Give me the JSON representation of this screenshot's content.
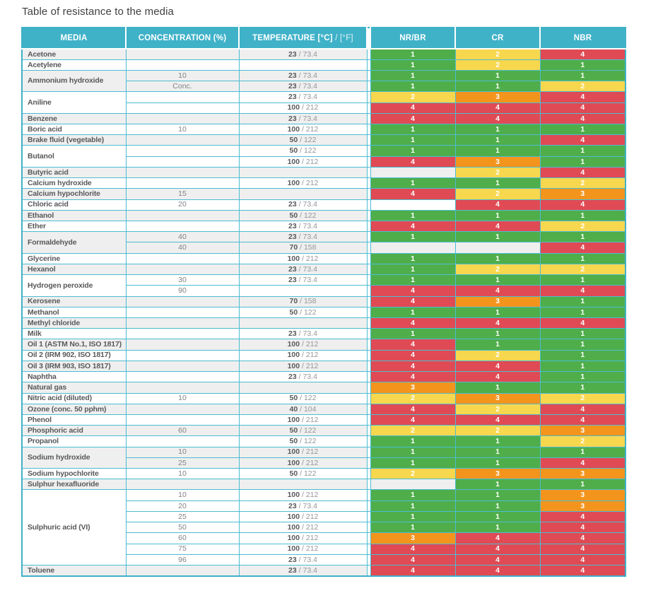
{
  "page": {
    "title": "Table of resistance to the media"
  },
  "colors": {
    "header_bg": "#3fb2c8",
    "border": "#4cbcd2",
    "row_shade": "#efefef",
    "row_white": "#ffffff",
    "rating": {
      "1": "#4fae4a",
      "2": "#f7d74e",
      "3": "#f3941d",
      "4": "#e04a54"
    }
  },
  "table": {
    "headers": {
      "media": "MEDIA",
      "concentration": "CONCENTRATION (%)",
      "temperature_bold": "TEMPERATURE [°C]",
      "temperature_light": "/ [°F]",
      "nr_br": "NR/BR",
      "cr": "CR",
      "nbr": "NBR"
    },
    "rating_scale_note": "1=green 2=yellow 3=orange 4=red",
    "groups": [
      {
        "media": "Acetone",
        "rows": [
          {
            "conc": "",
            "c": "23",
            "f": "73.4",
            "r": [
              1,
              2,
              4
            ]
          }
        ]
      },
      {
        "media": "Acetylene",
        "rows": [
          {
            "conc": "",
            "c": "",
            "f": "",
            "r": [
              1,
              2,
              1
            ]
          }
        ]
      },
      {
        "media": "Ammonium hydroxide",
        "rows": [
          {
            "conc": "10",
            "c": "23",
            "f": "73.4",
            "r": [
              1,
              1,
              1
            ]
          },
          {
            "conc": "Conc.",
            "c": "23",
            "f": "73.4",
            "r": [
              1,
              1,
              2
            ]
          }
        ]
      },
      {
        "media": "Aniline",
        "rows": [
          {
            "conc": "",
            "c": "23",
            "f": "73.4",
            "r": [
              2,
              3,
              4
            ]
          },
          {
            "conc": "",
            "c": "100",
            "f": "212",
            "r": [
              4,
              4,
              4
            ]
          }
        ]
      },
      {
        "media": "Benzene",
        "rows": [
          {
            "conc": "",
            "c": "23",
            "f": "73.4",
            "r": [
              4,
              4,
              4
            ]
          }
        ]
      },
      {
        "media": "Boric acid",
        "rows": [
          {
            "conc": "10",
            "c": "100",
            "f": "212",
            "r": [
              1,
              1,
              1
            ]
          }
        ]
      },
      {
        "media": "Brake fluid (vegetable)",
        "rows": [
          {
            "conc": "",
            "c": "50",
            "f": "122",
            "r": [
              1,
              1,
              4
            ]
          }
        ]
      },
      {
        "media": "Butanol",
        "rows": [
          {
            "conc": "",
            "c": "50",
            "f": "122",
            "r": [
              1,
              1,
              1
            ]
          },
          {
            "conc": "",
            "c": "100",
            "f": "212",
            "r": [
              4,
              3,
              1
            ]
          }
        ]
      },
      {
        "media": "Butyric acid",
        "rows": [
          {
            "conc": "",
            "c": "",
            "f": "",
            "r": [
              null,
              2,
              4
            ]
          }
        ]
      },
      {
        "media": "Calcium hydroxide",
        "rows": [
          {
            "conc": "",
            "c": "100",
            "f": "212",
            "r": [
              1,
              1,
              2
            ]
          }
        ]
      },
      {
        "media": "Calcium hypochlorite",
        "rows": [
          {
            "conc": "15",
            "c": "",
            "f": "",
            "r": [
              4,
              2,
              3
            ]
          }
        ]
      },
      {
        "media": "Chloric acid",
        "rows": [
          {
            "conc": "20",
            "c": "23",
            "f": "73.4",
            "r": [
              null,
              4,
              4
            ]
          }
        ]
      },
      {
        "media": "Ethanol",
        "rows": [
          {
            "conc": "",
            "c": "50",
            "f": "122",
            "r": [
              1,
              1,
              1
            ]
          }
        ]
      },
      {
        "media": "Ether",
        "rows": [
          {
            "conc": "",
            "c": "23",
            "f": "73.4",
            "r": [
              4,
              4,
              2
            ]
          }
        ]
      },
      {
        "media": "Formaldehyde",
        "rows": [
          {
            "conc": "40",
            "c": "23",
            "f": "73.4",
            "r": [
              1,
              1,
              1
            ]
          },
          {
            "conc": "40",
            "c": "70",
            "f": "158",
            "r": [
              null,
              null,
              4
            ]
          }
        ]
      },
      {
        "media": "Glycerine",
        "rows": [
          {
            "conc": "",
            "c": "100",
            "f": "212",
            "r": [
              1,
              1,
              1
            ]
          }
        ]
      },
      {
        "media": "Hexanol",
        "rows": [
          {
            "conc": "",
            "c": "23",
            "f": "73.4",
            "r": [
              1,
              2,
              2
            ]
          }
        ]
      },
      {
        "media": "Hydrogen peroxide",
        "rows": [
          {
            "conc": "30",
            "c": "23",
            "f": "73.4",
            "r": [
              1,
              1,
              1
            ]
          },
          {
            "conc": "90",
            "c": "",
            "f": "",
            "r": [
              4,
              4,
              4
            ]
          }
        ]
      },
      {
        "media": "Kerosene",
        "rows": [
          {
            "conc": "",
            "c": "70",
            "f": "158",
            "r": [
              4,
              3,
              1
            ]
          }
        ]
      },
      {
        "media": "Methanol",
        "rows": [
          {
            "conc": "",
            "c": "50",
            "f": "122",
            "r": [
              1,
              1,
              1
            ]
          }
        ]
      },
      {
        "media": "Methyl chloride",
        "rows": [
          {
            "conc": "",
            "c": "",
            "f": "",
            "r": [
              4,
              4,
              4
            ]
          }
        ]
      },
      {
        "media": "Milk",
        "rows": [
          {
            "conc": "",
            "c": "23",
            "f": "73.4",
            "r": [
              1,
              1,
              1
            ]
          }
        ]
      },
      {
        "media": "Oil 1 (ASTM No.1, ISO 1817)",
        "rows": [
          {
            "conc": "",
            "c": "100",
            "f": "212",
            "r": [
              4,
              1,
              1
            ]
          }
        ]
      },
      {
        "media": "Oil 2 (IRM 902, ISO 1817)",
        "rows": [
          {
            "conc": "",
            "c": "100",
            "f": "212",
            "r": [
              4,
              2,
              1
            ]
          }
        ]
      },
      {
        "media": "Oil 3 (IRM 903, ISO 1817)",
        "rows": [
          {
            "conc": "",
            "c": "100",
            "f": "212",
            "r": [
              4,
              4,
              1
            ]
          }
        ]
      },
      {
        "media": "Naphtha",
        "rows": [
          {
            "conc": "",
            "c": "23",
            "f": "73.4",
            "r": [
              4,
              4,
              1
            ]
          }
        ]
      },
      {
        "media": "Natural gas",
        "rows": [
          {
            "conc": "",
            "c": "",
            "f": "",
            "r": [
              3,
              1,
              1
            ]
          }
        ]
      },
      {
        "media": "Nitric acid (diluted)",
        "rows": [
          {
            "conc": "10",
            "c": "50",
            "f": "122",
            "r": [
              2,
              3,
              2
            ]
          }
        ]
      },
      {
        "media": "Ozone (conc. 50 pphm)",
        "rows": [
          {
            "conc": "",
            "c": "40",
            "f": "104",
            "r": [
              4,
              2,
              4
            ]
          }
        ]
      },
      {
        "media": "Phenol",
        "rows": [
          {
            "conc": "",
            "c": "100",
            "f": "212",
            "r": [
              4,
              4,
              4
            ]
          }
        ]
      },
      {
        "media": "Phosphoric acid",
        "rows": [
          {
            "conc": "60",
            "c": "50",
            "f": "122",
            "r": [
              2,
              2,
              3
            ]
          }
        ]
      },
      {
        "media": "Propanol",
        "rows": [
          {
            "conc": "",
            "c": "50",
            "f": "122",
            "r": [
              1,
              1,
              2
            ]
          }
        ]
      },
      {
        "media": "Sodium hydroxide",
        "rows": [
          {
            "conc": "10",
            "c": "100",
            "f": "212",
            "r": [
              1,
              1,
              1
            ]
          },
          {
            "conc": "25",
            "c": "100",
            "f": "212",
            "r": [
              1,
              1,
              4
            ]
          }
        ]
      },
      {
        "media": "Sodium hypochlorite",
        "rows": [
          {
            "conc": "10",
            "c": "50",
            "f": "122",
            "r": [
              2,
              3,
              3
            ]
          }
        ]
      },
      {
        "media": "Sulphur hexafluoride",
        "rows": [
          {
            "conc": "",
            "c": "",
            "f": "",
            "r": [
              null,
              1,
              1
            ]
          }
        ]
      },
      {
        "media": "Sulphuric acid (VI)",
        "rows": [
          {
            "conc": "10",
            "c": "100",
            "f": "212",
            "r": [
              1,
              1,
              3
            ]
          },
          {
            "conc": "20",
            "c": "23",
            "f": "73.4",
            "r": [
              1,
              1,
              3
            ]
          },
          {
            "conc": "25",
            "c": "100",
            "f": "212",
            "r": [
              1,
              1,
              4
            ]
          },
          {
            "conc": "50",
            "c": "100",
            "f": "212",
            "r": [
              1,
              1,
              4
            ]
          },
          {
            "conc": "60",
            "c": "100",
            "f": "212",
            "r": [
              3,
              4,
              4
            ]
          },
          {
            "conc": "75",
            "c": "100",
            "f": "212",
            "r": [
              4,
              4,
              4
            ]
          },
          {
            "conc": "96",
            "c": "23",
            "f": "73.4",
            "r": [
              4,
              4,
              4
            ]
          }
        ]
      },
      {
        "media": "Toluene",
        "rows": [
          {
            "conc": "",
            "c": "23",
            "f": "73.4",
            "r": [
              4,
              4,
              4
            ]
          }
        ]
      }
    ]
  }
}
